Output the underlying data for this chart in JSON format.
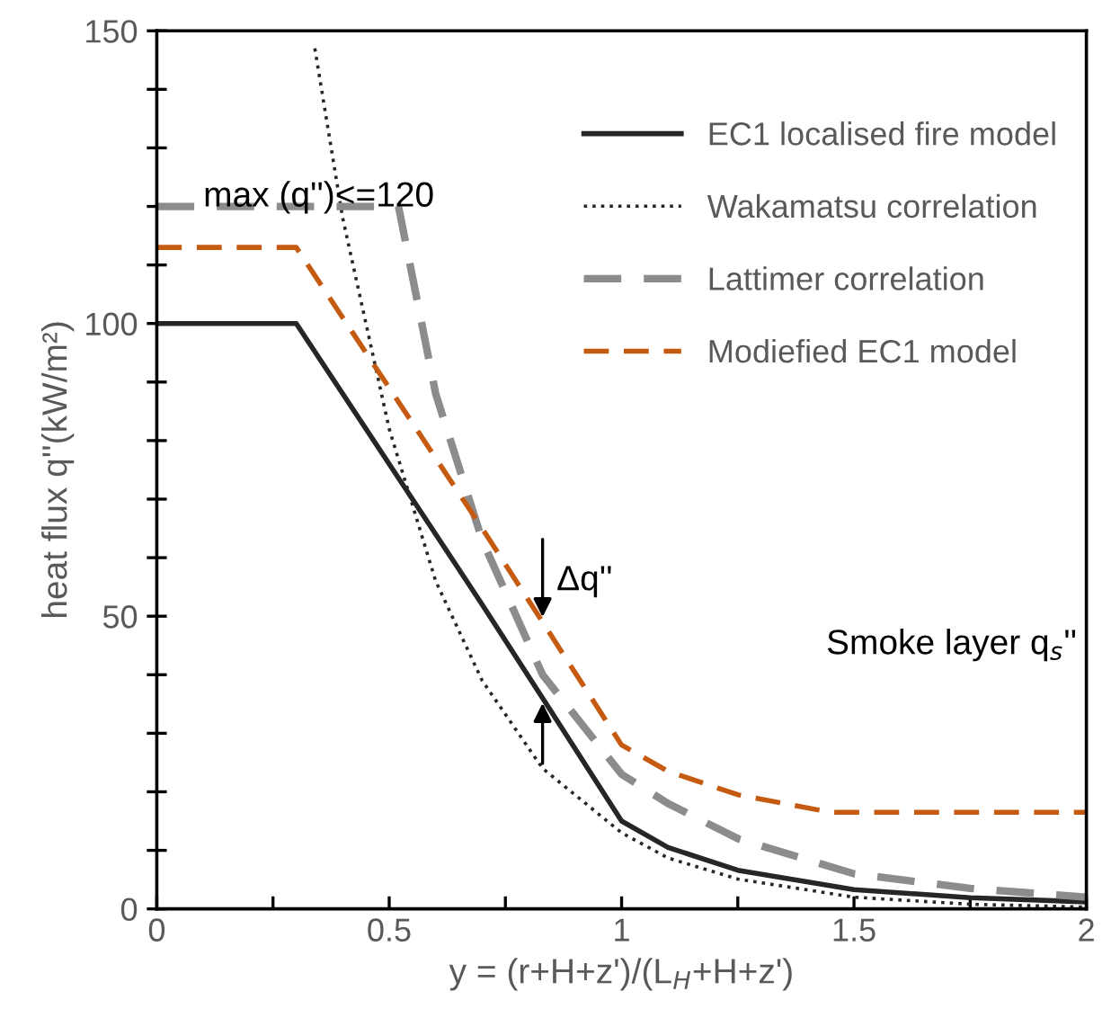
{
  "chart_data": {
    "type": "line",
    "xlabel": "y = (r+H+z')/(L$_{H}$+H+z')",
    "ylabel": "heat flux q''(kW/m²)",
    "xlim": [
      0,
      2
    ],
    "ylim": [
      0,
      150
    ],
    "xticks": [
      0,
      {
        "value": 0.25,
        "label": null
      },
      0.5,
      {
        "value": 0.75,
        "label": null
      },
      1,
      {
        "value": 1.25,
        "label": null
      },
      1.5,
      {
        "value": 1.75,
        "label": null
      },
      2
    ],
    "yticks": [
      0,
      {
        "value": 10,
        "label": null
      },
      {
        "value": 20,
        "label": null
      },
      {
        "value": 30,
        "label": null
      },
      {
        "value": 40,
        "label": null
      },
      50,
      {
        "value": 60,
        "label": null
      },
      {
        "value": 70,
        "label": null
      },
      {
        "value": 80,
        "label": null
      },
      {
        "value": 90,
        "label": null
      },
      100,
      {
        "value": 110,
        "label": null
      },
      {
        "value": 120,
        "label": null
      },
      {
        "value": 130,
        "label": null
      },
      {
        "value": 140,
        "label": null
      },
      150
    ],
    "grid": false,
    "legend": "top right",
    "marker": "none",
    "series": [
      {
        "name": "EC1 localised fire model",
        "color": "#262626",
        "line_style": "solid",
        "x": [
          0,
          0.3,
          0.5,
          0.7,
          0.83,
          1.0,
          1.1,
          1.25,
          1.5,
          1.75,
          2.0
        ],
        "values": [
          100,
          100,
          76,
          52,
          36,
          15,
          10.5,
          6.6,
          3.3,
          1.9,
          1.2
        ]
      },
      {
        "name": "Wakamatsu correlation",
        "color": "#262626",
        "line_style": "dotted",
        "x": [
          0.34,
          0.4,
          0.5,
          0.6,
          0.7,
          0.83,
          1.0,
          1.1,
          1.25,
          1.5,
          1.75,
          2.0
        ],
        "values": [
          147,
          118,
          82,
          56,
          39,
          24,
          13,
          8.7,
          5.1,
          2,
          0.8,
          0.3
        ]
      },
      {
        "name": "Lattimer correlation",
        "color": "#8c8c8c",
        "line_style": "dashed",
        "x": [
          0,
          0.52,
          0.6,
          0.7,
          0.83,
          1.0,
          1.1,
          1.25,
          1.5,
          1.75,
          2.0
        ],
        "values": [
          120,
          120,
          88,
          63,
          40,
          23,
          18,
          12,
          6,
          3.5,
          2
        ]
      },
      {
        "name": "Modiefied EC1 model",
        "color": "#c55a11",
        "line_style": "dashed",
        "x": [
          0,
          0.3,
          0.5,
          0.7,
          0.83,
          1.0,
          1.1,
          1.25,
          1.45,
          1.5,
          1.75,
          2.0
        ],
        "values": [
          113,
          113,
          89,
          65,
          49,
          28,
          23.5,
          19.5,
          16.5,
          16.5,
          16.5,
          16.5
        ]
      }
    ],
    "annotations": [
      "max (q'')<=120",
      {
        "text": "Δq''",
        "x": 0.83,
        "y": 49
      },
      "Smoke layer q$_{s}$''"
    ]
  }
}
